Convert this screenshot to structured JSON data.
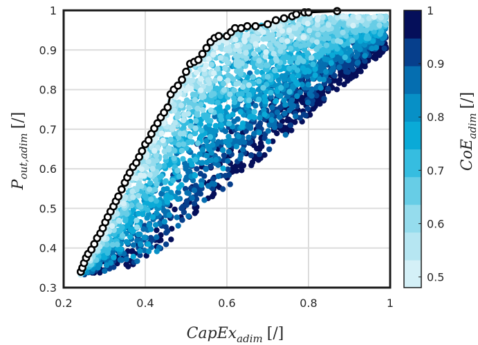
{
  "chart_data": {
    "type": "scatter",
    "xlabel_main": "CapEx",
    "xlabel_sub": "adim",
    "xlabel_unit": "[/]",
    "ylabel_main": "P",
    "ylabel_sub": "out,adim",
    "ylabel_unit": "[/]",
    "colorbar_label_main": "CoE",
    "colorbar_label_sub": "adim",
    "colorbar_label_unit": "[/]",
    "xlim": [
      0.2,
      1.0
    ],
    "ylim": [
      0.3,
      1.0
    ],
    "x_ticks": [
      0.2,
      0.4,
      0.6,
      0.8,
      1.0
    ],
    "x_tick_labels": [
      "0.2",
      "0.4",
      "0.6",
      "0.8",
      "1"
    ],
    "y_ticks": [
      0.3,
      0.4,
      0.5,
      0.6,
      0.7,
      0.8,
      0.9,
      1.0
    ],
    "y_tick_labels": [
      "0.3",
      "0.4",
      "0.5",
      "0.6",
      "0.7",
      "0.8",
      "0.9",
      "1"
    ],
    "grid": true,
    "colorbar": {
      "range": [
        0.48,
        1.0
      ],
      "ticks": [
        0.5,
        0.6,
        0.7,
        0.8,
        0.9,
        1.0
      ],
      "tick_labels": [
        "0.5",
        "0.6",
        "0.7",
        "0.8",
        "0.9",
        "1"
      ],
      "levels": 10,
      "colors": [
        "#d4f0f7",
        "#b6e6f2",
        "#95dced",
        "#67cde6",
        "#36bde0",
        "#0aaad7",
        "#0790c6",
        "#056eb0",
        "#063f8c",
        "#050f5a"
      ]
    },
    "pareto_front": {
      "style": "black line with open circle markers",
      "x": [
        0.242,
        0.246,
        0.25,
        0.255,
        0.26,
        0.268,
        0.275,
        0.282,
        0.29,
        0.296,
        0.302,
        0.308,
        0.315,
        0.322,
        0.328,
        0.334,
        0.342,
        0.35,
        0.356,
        0.362,
        0.37,
        0.378,
        0.385,
        0.392,
        0.4,
        0.408,
        0.415,
        0.422,
        0.43,
        0.438,
        0.446,
        0.455,
        0.462,
        0.47,
        0.48,
        0.49,
        0.5,
        0.51,
        0.52,
        0.53,
        0.54,
        0.55,
        0.56,
        0.57,
        0.58,
        0.6,
        0.61,
        0.62,
        0.635,
        0.65,
        0.67,
        0.7,
        0.72,
        0.74,
        0.76,
        0.77,
        0.79,
        0.8,
        0.87
      ],
      "y": [
        0.34,
        0.35,
        0.362,
        0.375,
        0.385,
        0.396,
        0.41,
        0.425,
        0.437,
        0.45,
        0.465,
        0.478,
        0.492,
        0.505,
        0.518,
        0.53,
        0.548,
        0.565,
        0.578,
        0.59,
        0.605,
        0.615,
        0.63,
        0.645,
        0.662,
        0.672,
        0.688,
        0.702,
        0.715,
        0.73,
        0.742,
        0.755,
        0.788,
        0.8,
        0.81,
        0.825,
        0.845,
        0.865,
        0.87,
        0.875,
        0.89,
        0.905,
        0.92,
        0.93,
        0.935,
        0.935,
        0.945,
        0.955,
        0.955,
        0.96,
        0.96,
        0.965,
        0.975,
        0.98,
        0.985,
        0.99,
        0.995,
        0.995,
        0.998
      ]
    },
    "cloud": {
      "description_count": 3200,
      "x_min": 0.24,
      "x_max": 0.99,
      "coe_range": [
        0.48,
        1.0
      ],
      "seed": 7
    }
  }
}
